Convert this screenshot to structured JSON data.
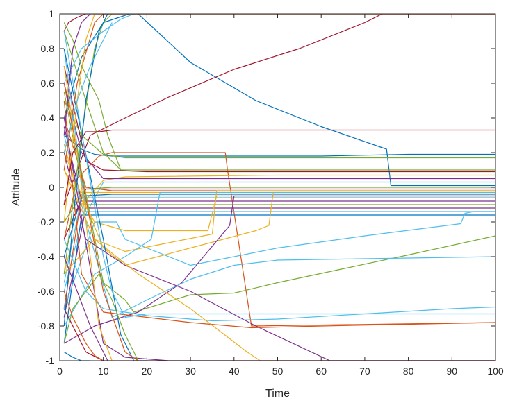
{
  "chart_data": {
    "type": "line",
    "title": "",
    "xlabel": "Time",
    "ylabel": "Attitude",
    "xlim": [
      0,
      100
    ],
    "ylim": [
      -1,
      1
    ],
    "xticks": [
      "0",
      "10",
      "20",
      "30",
      "40",
      "50",
      "60",
      "70",
      "80",
      "90",
      "100"
    ],
    "yticks": [
      "-1",
      "-0.8",
      "-0.6",
      "-0.4",
      "-0.2",
      "0",
      "0.2",
      "0.4",
      "0.6",
      "0.8",
      "1"
    ],
    "grid": false,
    "legend": "none",
    "colors": [
      "#0072BD",
      "#D95319",
      "#EDB120",
      "#7E2F8E",
      "#77AC30",
      "#4DBEEE",
      "#A2142F"
    ],
    "series": [
      {
        "color": "#0072BD",
        "x": [
          1,
          5,
          10,
          16,
          18,
          30,
          45,
          60,
          75,
          76,
          100
        ],
        "y": [
          0.4,
          0.75,
          0.95,
          1,
          1,
          0.72,
          0.5,
          0.35,
          0.22,
          0.01,
          0.01
        ]
      },
      {
        "color": "#A2142F",
        "x": [
          1,
          4,
          7,
          15,
          25,
          40,
          55,
          70,
          74,
          100
        ],
        "y": [
          -0.1,
          0.1,
          0.3,
          0.4,
          0.52,
          0.68,
          0.8,
          0.95,
          1,
          1
        ]
      },
      {
        "color": "#0072BD",
        "x": [
          1,
          5,
          8,
          12,
          40,
          60,
          80,
          100
        ],
        "y": [
          0.3,
          0.22,
          0.19,
          0.18,
          0.18,
          0.18,
          0.19,
          0.19
        ]
      },
      {
        "color": "#D95319",
        "x": [
          1,
          4,
          9,
          12,
          30,
          38,
          38.5,
          44,
          100
        ],
        "y": [
          -0.3,
          0.05,
          0.18,
          0.2,
          0.2,
          0.2,
          0.1,
          -0.8,
          -0.78
        ]
      },
      {
        "color": "#77AC30",
        "x": [
          1,
          5,
          10,
          15,
          40,
          70,
          100
        ],
        "y": [
          0.5,
          0.3,
          0.19,
          0.17,
          0.17,
          0.17,
          0.17
        ]
      },
      {
        "color": "#77AC30",
        "x": [
          1,
          6,
          10,
          14,
          40,
          100
        ],
        "y": [
          0.9,
          0.5,
          0.2,
          0.1,
          0.1,
          0.1
        ]
      },
      {
        "color": "#EDB120",
        "x": [
          1,
          5,
          10,
          15,
          50,
          100
        ],
        "y": [
          -0.5,
          -0.1,
          0.04,
          0.06,
          0.07,
          0.07
        ]
      },
      {
        "color": "#7E2F8E",
        "x": [
          1,
          5,
          10,
          20,
          60,
          100
        ],
        "y": [
          0.6,
          0.2,
          0.05,
          0.05,
          0.05,
          0.05
        ]
      },
      {
        "color": "#A2142F",
        "x": [
          1,
          6,
          10,
          20,
          100
        ],
        "y": [
          0.7,
          0.15,
          0.1,
          0.09,
          0.09
        ]
      },
      {
        "color": "#4DBEEE",
        "x": [
          1,
          5,
          10,
          20,
          100
        ],
        "y": [
          -0.6,
          -0.2,
          0.03,
          0.03,
          0.03
        ]
      },
      {
        "color": "#D95319",
        "x": [
          1,
          6,
          12,
          50,
          100
        ],
        "y": [
          0.4,
          0.0,
          -0.02,
          -0.02,
          -0.02
        ]
      },
      {
        "color": "#0072BD",
        "x": [
          1,
          5,
          12,
          60,
          100
        ],
        "y": [
          -0.4,
          -0.05,
          -0.04,
          -0.04,
          -0.04
        ]
      },
      {
        "color": "#77AC30",
        "x": [
          1,
          6,
          12,
          100
        ],
        "y": [
          -0.2,
          -0.01,
          0.0,
          0.0
        ]
      },
      {
        "color": "#EDB120",
        "x": [
          1,
          4,
          12,
          100
        ],
        "y": [
          0.25,
          -0.03,
          -0.03,
          -0.03
        ]
      },
      {
        "color": "#4DBEEE",
        "x": [
          1,
          5,
          12,
          100
        ],
        "y": [
          -0.55,
          -0.06,
          -0.06,
          -0.06
        ]
      },
      {
        "color": "#7E2F8E",
        "x": [
          1,
          5,
          12,
          100
        ],
        "y": [
          0.35,
          -0.08,
          -0.08,
          -0.08
        ]
      },
      {
        "color": "#A2142F",
        "x": [
          1,
          6,
          12,
          100
        ],
        "y": [
          -0.3,
          -0.01,
          -0.01,
          -0.01
        ]
      },
      {
        "color": "#7E2F8E",
        "x": [
          1,
          6,
          12,
          100
        ],
        "y": [
          -0.75,
          -0.12,
          -0.12,
          -0.12
        ]
      },
      {
        "color": "#0072BD",
        "x": [
          1,
          5,
          12,
          100
        ],
        "y": [
          -0.9,
          -0.16,
          -0.16,
          -0.16
        ]
      },
      {
        "color": "#77AC30",
        "x": [
          1,
          6,
          12,
          100
        ],
        "y": [
          0.55,
          -0.1,
          -0.1,
          -0.1
        ]
      },
      {
        "color": "#D95319",
        "x": [
          1,
          5,
          12,
          100
        ],
        "y": [
          -0.7,
          -0.05,
          -0.05,
          -0.05
        ]
      },
      {
        "color": "#4DBEEE",
        "x": [
          1,
          6,
          12,
          100
        ],
        "y": [
          0.8,
          -0.14,
          -0.14,
          -0.14
        ]
      },
      {
        "color": "#4DBEEE",
        "x": [
          1,
          8,
          13,
          15,
          30,
          50,
          70,
          92,
          93,
          95,
          100
        ],
        "y": [
          -0.7,
          -0.2,
          -0.2,
          -0.3,
          -0.45,
          -0.35,
          -0.28,
          -0.21,
          -0.15,
          -0.14,
          -0.14
        ]
      },
      {
        "color": "#77AC30",
        "x": [
          1,
          10,
          15,
          17,
          30,
          40,
          50,
          65,
          80,
          100
        ],
        "y": [
          0.6,
          -0.55,
          -0.65,
          -0.72,
          -0.62,
          -0.61,
          -0.55,
          -0.47,
          -0.39,
          -0.28
        ]
      },
      {
        "color": "#EDB120",
        "x": [
          1,
          8,
          15,
          25,
          35,
          36,
          100
        ],
        "y": [
          -0.5,
          -0.3,
          -0.37,
          -0.32,
          -0.27,
          -0.02,
          -0.02
        ]
      },
      {
        "color": "#EDB120",
        "x": [
          1,
          10,
          15,
          30,
          45,
          48,
          49,
          100
        ],
        "y": [
          0.2,
          -0.35,
          -0.45,
          -0.35,
          -0.25,
          -0.22,
          -0.03,
          -0.03
        ]
      },
      {
        "color": "#EDB120",
        "x": [
          1,
          8,
          15,
          25,
          34,
          36,
          100
        ],
        "y": [
          0.1,
          -0.2,
          -0.25,
          -0.25,
          -0.25,
          -0.05,
          -0.05
        ]
      },
      {
        "color": "#7E2F8E",
        "x": [
          1,
          8,
          18,
          28,
          39,
          40,
          100
        ],
        "y": [
          -0.9,
          -0.8,
          -0.72,
          -0.55,
          -0.22,
          -0.05,
          -0.05
        ]
      },
      {
        "color": "#4DBEEE",
        "x": [
          1,
          8,
          15,
          21,
          23,
          100
        ],
        "y": [
          -0.8,
          -0.5,
          -0.4,
          -0.3,
          -0.03,
          -0.03
        ]
      },
      {
        "color": "#4DBEEE",
        "x": [
          1,
          5,
          12,
          20,
          30,
          40,
          50,
          100
        ],
        "y": [
          0.3,
          -0.1,
          -0.75,
          -0.65,
          -0.53,
          -0.45,
          -0.42,
          -0.4
        ]
      },
      {
        "color": "#7E2F8E",
        "x": [
          1,
          6,
          15,
          30,
          45,
          62,
          100
        ],
        "y": [
          0.2,
          -0.3,
          -0.45,
          -0.6,
          -0.8,
          -1,
          -1
        ]
      },
      {
        "color": "#D95319",
        "x": [
          1,
          5,
          10,
          20,
          30,
          44,
          60,
          80,
          100
        ],
        "y": [
          0.5,
          -0.5,
          -0.72,
          -0.75,
          -0.78,
          -0.81,
          -0.8,
          -0.79,
          -0.78
        ]
      },
      {
        "color": "#4DBEEE",
        "x": [
          1,
          6,
          10,
          20,
          35,
          50,
          70,
          90,
          100
        ],
        "y": [
          -0.3,
          -0.6,
          -0.7,
          -0.74,
          -0.77,
          -0.76,
          -0.73,
          -0.7,
          -0.69
        ]
      },
      {
        "color": "#EDB120",
        "x": [
          1,
          8,
          18,
          30,
          43,
          46,
          100
        ],
        "y": [
          0.1,
          -0.3,
          -0.5,
          -0.7,
          -0.95,
          -1,
          -1
        ]
      },
      {
        "color": "#7E2F8E",
        "x": [
          1,
          10,
          15,
          25,
          100
        ],
        "y": [
          0.4,
          -0.9,
          -0.98,
          -1,
          -1
        ]
      },
      {
        "color": "#0072BD",
        "x": [
          1,
          10,
          14,
          17,
          20
        ],
        "y": [
          0.8,
          -0.3,
          -0.85,
          -1,
          -1
        ]
      },
      {
        "color": "#D95319",
        "x": [
          1,
          10,
          15,
          18
        ],
        "y": [
          0.6,
          -0.6,
          -0.95,
          -1
        ]
      },
      {
        "color": "#A2142F",
        "x": [
          1,
          6,
          10,
          14,
          100
        ],
        "y": [
          -0.7,
          -0.95,
          -1,
          -1,
          -1
        ]
      },
      {
        "color": "#4DBEEE",
        "x": [
          1,
          10,
          12,
          15,
          20,
          100
        ],
        "y": [
          0.9,
          -0.4,
          -0.6,
          -0.75,
          -0.73,
          -0.73
        ]
      },
      {
        "color": "#77AC30",
        "x": [
          1,
          5,
          8,
          10,
          12
        ],
        "y": [
          -0.5,
          0.3,
          0.8,
          0.95,
          1
        ]
      },
      {
        "color": "#D95319",
        "x": [
          1,
          4,
          8,
          10,
          100
        ],
        "y": [
          0.1,
          0.6,
          0.95,
          1,
          1
        ]
      },
      {
        "color": "#EDB120",
        "x": [
          1,
          4,
          6,
          8,
          100
        ],
        "y": [
          -0.2,
          0.5,
          0.85,
          1,
          1
        ]
      },
      {
        "color": "#0072BD",
        "x": [
          1,
          3,
          6,
          9,
          11
        ],
        "y": [
          -0.8,
          -0.2,
          0.5,
          0.9,
          1
        ]
      },
      {
        "color": "#4DBEEE",
        "x": [
          1,
          5,
          10,
          14,
          17
        ],
        "y": [
          0.6,
          0.8,
          0.9,
          0.97,
          1
        ]
      },
      {
        "color": "#7E2F8E",
        "x": [
          1,
          3,
          5,
          7
        ],
        "y": [
          0.3,
          0.8,
          0.95,
          1
        ]
      },
      {
        "color": "#A2142F",
        "x": [
          1,
          2,
          4,
          6,
          100
        ],
        "y": [
          0.9,
          0.95,
          0.98,
          1,
          1
        ]
      },
      {
        "color": "#77AC30",
        "x": [
          1,
          3,
          6,
          9,
          12,
          15,
          18
        ],
        "y": [
          -0.9,
          -0.7,
          -0.6,
          -0.5,
          -0.65,
          -0.85,
          -1
        ]
      },
      {
        "color": "#D95319",
        "x": [
          1,
          3,
          6,
          8,
          10
        ],
        "y": [
          -0.6,
          -0.75,
          -0.9,
          -0.97,
          -1
        ]
      },
      {
        "color": "#EDB120",
        "x": [
          1,
          4,
          7,
          9,
          12
        ],
        "y": [
          0.7,
          0.2,
          -0.4,
          -0.8,
          -1
        ]
      },
      {
        "color": "#0072BD",
        "x": [
          1,
          3,
          5,
          7
        ],
        "y": [
          -0.95,
          -0.98,
          -1,
          -1
        ]
      },
      {
        "color": "#77AC30",
        "x": [
          1,
          3,
          5,
          7,
          9,
          11,
          14
        ],
        "y": [
          0.95,
          0.85,
          0.7,
          0.6,
          0.5,
          0.3,
          0.1
        ]
      },
      {
        "color": "#4DBEEE",
        "x": [
          1,
          4,
          7,
          10,
          12
        ],
        "y": [
          0.2,
          0.5,
          0.7,
          0.85,
          0.95
        ]
      },
      {
        "color": "#7E2F8E",
        "x": [
          1,
          4,
          7,
          9,
          11
        ],
        "y": [
          -0.4,
          -0.6,
          -0.8,
          -0.9,
          -1
        ]
      },
      {
        "color": "#A2142F",
        "x": [
          1,
          3,
          6,
          9,
          12,
          100
        ],
        "y": [
          -0.1,
          0.2,
          0.32,
          0.32,
          0.33,
          0.33
        ]
      }
    ]
  }
}
